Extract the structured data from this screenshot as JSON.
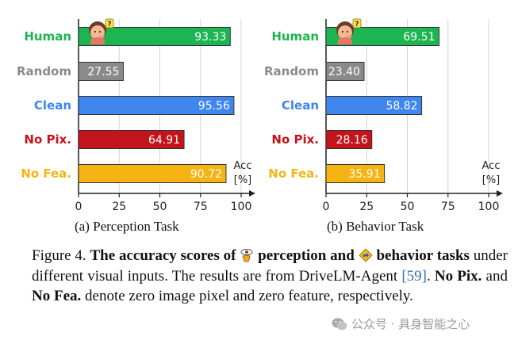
{
  "chart_data": [
    {
      "type": "bar",
      "orientation": "horizontal",
      "categories": [
        "Human",
        "Random",
        "Clean",
        "No Pix.",
        "No Fea."
      ],
      "values": [
        93.33,
        27.55,
        95.56,
        64.91,
        90.72
      ],
      "xlim": [
        0,
        100
      ],
      "xticks": [
        "0",
        "25",
        "50",
        "75",
        "100"
      ],
      "axis_unit_top": "Acc",
      "axis_unit_bottom": "[%]",
      "subtitle": "(a) Perception Task"
    },
    {
      "type": "bar",
      "orientation": "horizontal",
      "categories": [
        "Human",
        "Random",
        "Clean",
        "No Pix.",
        "No Fea."
      ],
      "values": [
        69.51,
        23.4,
        58.82,
        28.16,
        35.91
      ],
      "xlim": [
        0,
        100
      ],
      "xticks": [
        "0",
        "25",
        "50",
        "75",
        "100"
      ],
      "axis_unit_top": "Acc",
      "axis_unit_bottom": "[%]",
      "subtitle": "(b) Behavior Task"
    }
  ],
  "colors": {
    "Human": "#1db552",
    "Random": "#8a8a8a",
    "Clean": "#3f86ef",
    "No Pix.": "#c4141b",
    "No Fea.": "#f5b413"
  },
  "caption": {
    "prefix": "Figure 4. ",
    "bold1": "The accuracy scores of ",
    "bold2": " perception and ",
    "bold3": " behavior tasks",
    "text1": " under different visual inputs. The results are from DriveLM-Agent ",
    "cite": "[59]",
    "text2": ". ",
    "bold4": "No Pix.",
    "text3": " and ",
    "bold5": "No Fea.",
    "text4": " denote zero image pixel and zero feature, respectively."
  },
  "icons": {
    "human": "thinking-person-icon",
    "perception": "eye-hand-icon",
    "behavior": "driving-direction-icon",
    "watermark": "wechat-icon"
  },
  "watermark": {
    "text": "公众号 · 具身智能之心"
  }
}
